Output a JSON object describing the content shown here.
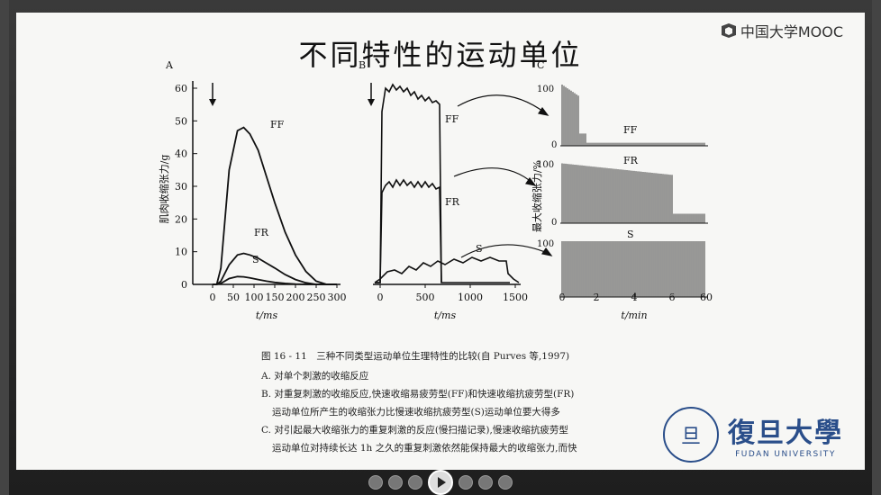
{
  "slide_title": "不同特性的运动单位",
  "brand": "中国大学MOOC",
  "panels": {
    "a_letter": "A",
    "b_letter": "B",
    "c_letter": "C"
  },
  "panel_a": {
    "y_ticks": [
      "60",
      "50",
      "40",
      "30",
      "20",
      "10",
      "0"
    ],
    "x_ticks": [
      "0",
      "50",
      "100",
      "150",
      "200",
      "250",
      "300"
    ],
    "ylabel": "肌肉收缩张力/g",
    "xlabel": "t/ms",
    "curve_labels": [
      "FF",
      "FR",
      "S"
    ]
  },
  "panel_b": {
    "x_ticks": [
      "0",
      "500",
      "1000",
      "1500"
    ],
    "xlabel": "t/ms",
    "curve_labels": [
      "FF",
      "FR",
      "S"
    ]
  },
  "panel_c": {
    "ylabel": "最大收缩张力/%",
    "y_ticks": [
      "100",
      "0"
    ],
    "x_ticks": [
      "0",
      "2",
      "4",
      "6",
      "60"
    ],
    "xlabel": "t/min",
    "row_labels": [
      "FF",
      "FR",
      "S"
    ]
  },
  "chart_data": [
    {
      "type": "line",
      "panel": "A",
      "xlabel": "t/ms",
      "ylabel": "肌肉收缩张力/g",
      "xlim": [
        0,
        300
      ],
      "ylim": [
        0,
        60
      ],
      "series": [
        {
          "name": "FF",
          "x": [
            0,
            10,
            20,
            40,
            60,
            75,
            90,
            110,
            130,
            150,
            175,
            200,
            225,
            250,
            275,
            300
          ],
          "values": [
            0,
            0,
            5,
            35,
            47,
            48,
            46,
            41,
            33,
            25,
            16,
            9,
            4,
            1,
            0,
            0
          ]
        },
        {
          "name": "FR",
          "x": [
            0,
            10,
            20,
            40,
            60,
            75,
            90,
            110,
            130,
            150,
            175,
            200,
            225,
            250,
            275,
            300
          ],
          "values": [
            0,
            0,
            1,
            6,
            9,
            9.5,
            9,
            8,
            6.5,
            5,
            3,
            1.5,
            0.5,
            0,
            0,
            0
          ]
        },
        {
          "name": "S",
          "x": [
            0,
            10,
            20,
            40,
            60,
            75,
            90,
            110,
            130,
            150,
            175,
            200,
            225,
            250,
            275,
            300
          ],
          "values": [
            0,
            0,
            0.3,
            1.8,
            2.4,
            2.3,
            2,
            1.5,
            1,
            0.6,
            0.3,
            0.1,
            0,
            0,
            0,
            0
          ]
        }
      ]
    }
  ],
  "caption": {
    "head": "图 16 - 11　三种不同类型运动单位生理特性的比较(自 Purves 等,1997)",
    "lines": [
      "A. 对单个刺激的收缩反应",
      "B. 对重复刺激的收缩反应,快速收缩易疲劳型(FF)和快速收缩抗疲劳型(FR)",
      "运动单位所产生的收缩张力比慢速收缩抗疲劳型(S)运动单位要大得多",
      "C. 对引起最大收缩张力的重复刺激的反应(慢扫描记录),慢速收缩抗疲劳型",
      "运动单位对持续长达 1h 之久的重复刺激依然能保持最大的收缩张力,而快"
    ]
  },
  "university": {
    "cn": "復旦大學",
    "en": "FUDAN UNIVERSITY",
    "seal_text": "旦"
  }
}
